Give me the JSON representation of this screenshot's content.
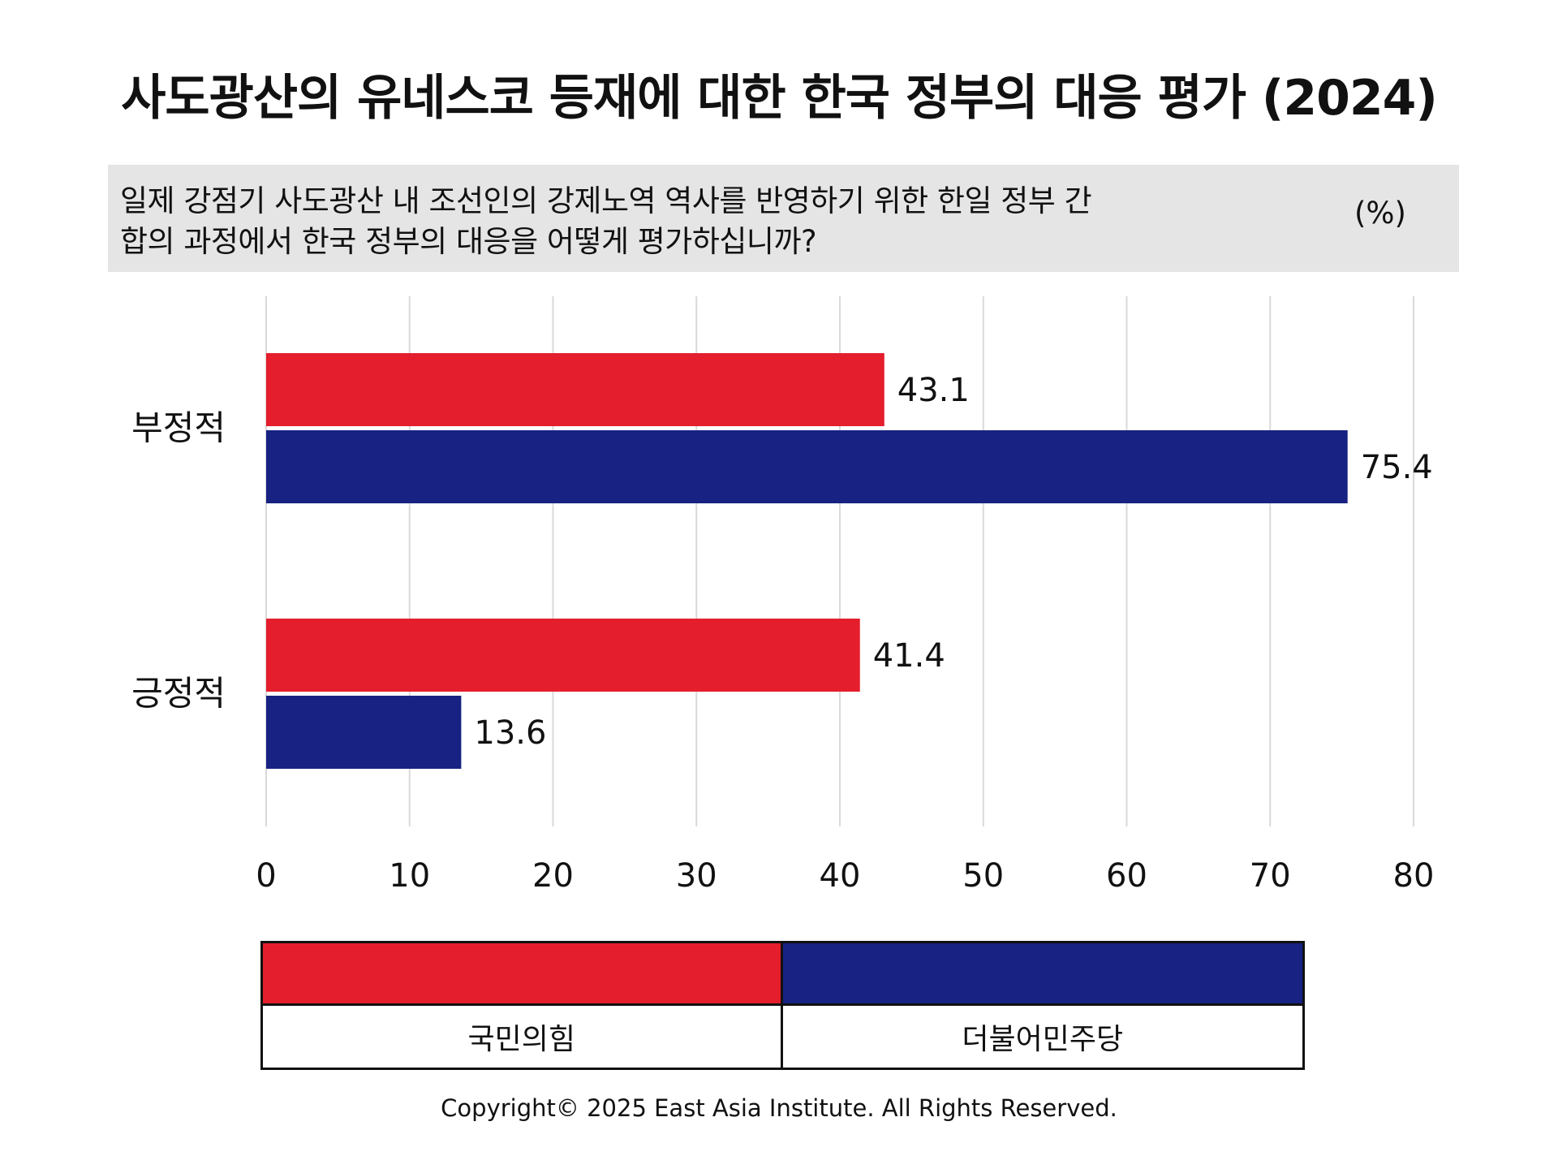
{
  "chart_data": {
    "type": "bar",
    "orientation": "horizontal",
    "title": "사도광산의 유네스코 등재에 대한 한국 정부의 대응 평가 (2024)",
    "subtitle": [
      "일제 강점기 사도광산 내 조선인의 강제노역 역사를 반영하기 위한 한일 정부 간",
      "합의 과정에서 한국 정부의 대응을 어떻게 평가하십니까?"
    ],
    "unit": "(%)",
    "categories": [
      "부정적",
      "긍정적"
    ],
    "series": [
      {
        "name": "국민의힘",
        "values": [
          43.1,
          41.4
        ],
        "color": "#e41e2c"
      },
      {
        "name": "더불어민주당",
        "values": [
          75.4,
          13.6
        ],
        "color": "#182282"
      }
    ],
    "xlim": [
      0,
      80
    ],
    "xticks": [
      0,
      10,
      20,
      30,
      40,
      50,
      60,
      70,
      80
    ],
    "grid": true,
    "legend_position": "bottom"
  },
  "footer": {
    "copyright": "Copyright© 2025 East Asia Institute. All Rights Reserved."
  }
}
